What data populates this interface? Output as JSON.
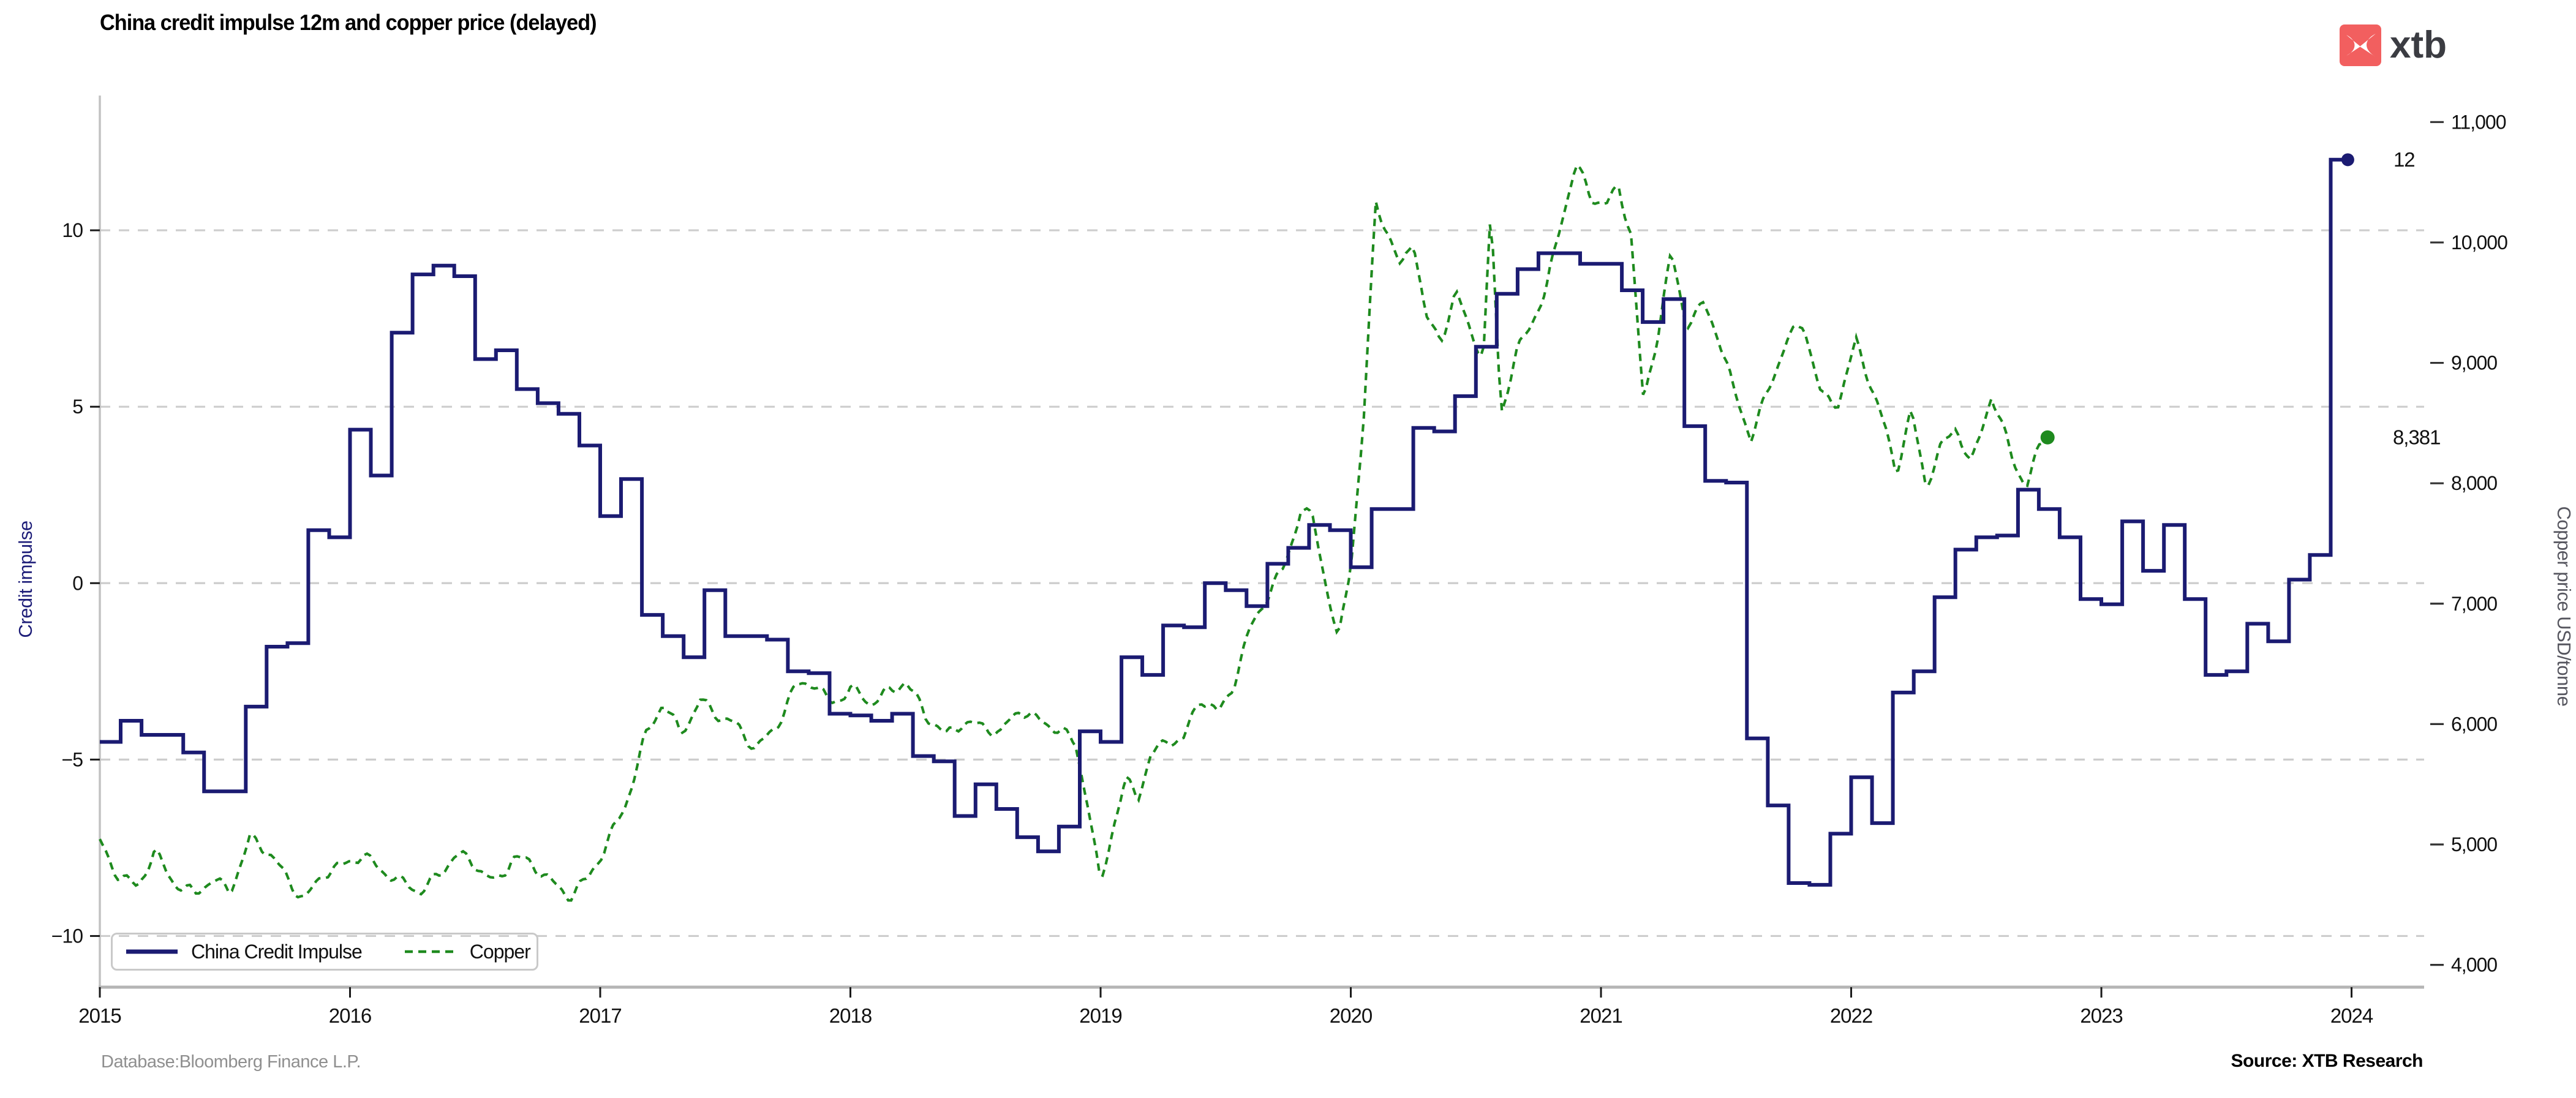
{
  "header": {
    "title": "China credit impulse 12m and copper price (delayed)",
    "logo": {
      "brand": "xtb",
      "accent_color": "#f25f5f",
      "text_color": "#3b3c42"
    }
  },
  "footer": {
    "database": "Database:Bloomberg Finance L.P.",
    "source": "Source: XTB Research"
  },
  "chart_data": {
    "type": "line",
    "title": "China credit impulse 12m and copper price (delayed)",
    "grid": {
      "axis": "y",
      "style": "dashed",
      "color": "#cdcdcd"
    },
    "x_axis": {
      "range": [
        2015,
        2024.29
      ],
      "ticks": [
        2015,
        2016,
        2017,
        2018,
        2019,
        2020,
        2021,
        2022,
        2023,
        2024
      ]
    },
    "y_left": {
      "label": "Credit impulse",
      "color": "#1d1d78",
      "range": [
        -11.45,
        13.75
      ],
      "ticks": [
        10,
        5,
        0,
        -5,
        -10
      ],
      "tick_labels": [
        "10",
        "5",
        "0",
        "−5",
        "−10"
      ]
    },
    "y_right": {
      "label": "Copper price USD/tonne",
      "color": "#55555e",
      "range": [
        3815,
        11200
      ],
      "ticks": [
        11000,
        10000,
        9000,
        8000,
        7000,
        6000,
        5000,
        4000
      ],
      "tick_labels": [
        "11,000",
        "10,000",
        "9,000",
        "8,000",
        "7,000",
        "6,000",
        "5,000",
        "4,000"
      ]
    },
    "legend": {
      "position": "lower left",
      "items": [
        {
          "label": "China Credit Impulse",
          "color": "#1b1b72",
          "dash": "solid"
        },
        {
          "label": "Copper",
          "color": "#1e8a1e",
          "dash": "dashed"
        }
      ]
    },
    "annotations": [
      {
        "id": "credit-final",
        "text": "12",
        "x": 2024.21,
        "axis": "left",
        "y": 12
      },
      {
        "id": "copper-final",
        "text": "8,381",
        "x": 2024.26,
        "axis": "right",
        "y": 8381
      }
    ],
    "series": [
      {
        "name": "China Credit Impulse",
        "axis": "left",
        "style": "step",
        "color": "#1b1b72",
        "start_year": 2015,
        "frequency": "monthly",
        "end_marker": true,
        "values": [
          -4.5,
          -3.9,
          -4.3,
          -4.3,
          -4.8,
          -5.9,
          -5.9,
          -3.5,
          -1.8,
          -1.7,
          1.5,
          1.3,
          4.35,
          3.05,
          7.1,
          8.75,
          9.0,
          8.7,
          6.35,
          6.6,
          5.5,
          5.1,
          4.8,
          3.9,
          1.9,
          2.95,
          -0.9,
          -1.5,
          -2.1,
          -0.2,
          -1.5,
          -1.5,
          -1.6,
          -2.5,
          -2.55,
          -3.7,
          -3.75,
          -3.9,
          -3.7,
          -4.9,
          -5.05,
          -6.6,
          -5.7,
          -6.4,
          -7.2,
          -7.6,
          -6.9,
          -4.2,
          -4.5,
          -2.1,
          -2.6,
          -1.2,
          -1.25,
          0.0,
          -0.2,
          -0.65,
          0.55,
          1.0,
          1.65,
          1.5,
          0.45,
          2.1,
          2.1,
          4.4,
          4.3,
          5.3,
          6.7,
          8.2,
          8.9,
          9.35,
          9.35,
          9.05,
          9.05,
          8.3,
          7.4,
          8.05,
          4.45,
          2.9,
          2.85,
          -4.4,
          -6.3,
          -8.5,
          -8.55,
          -7.1,
          -5.5,
          -6.8,
          -3.1,
          -2.5,
          -0.4,
          0.95,
          1.3,
          1.35,
          2.65,
          2.1,
          1.3,
          -0.45,
          -0.6,
          1.75,
          0.35,
          1.65,
          -0.45,
          -2.6,
          -2.5,
          -1.15,
          -1.65,
          0.1,
          0.8,
          12
        ]
      },
      {
        "name": "Copper",
        "axis": "right",
        "style": "dashed-noisy",
        "color": "#1e8a1e",
        "end_marker": true,
        "points": [
          [
            2015.0,
            5050
          ],
          [
            2015.08,
            4720
          ],
          [
            2015.15,
            4620
          ],
          [
            2015.22,
            4950
          ],
          [
            2015.3,
            4700
          ],
          [
            2015.38,
            4560
          ],
          [
            2015.45,
            4700
          ],
          [
            2015.52,
            4640
          ],
          [
            2015.6,
            5050
          ],
          [
            2015.68,
            4900
          ],
          [
            2015.75,
            4720
          ],
          [
            2015.82,
            4570
          ],
          [
            2015.9,
            4750
          ],
          [
            2015.97,
            4800
          ],
          [
            2016.05,
            4950
          ],
          [
            2016.12,
            4800
          ],
          [
            2016.2,
            4660
          ],
          [
            2016.28,
            4620
          ],
          [
            2016.35,
            4760
          ],
          [
            2016.42,
            4900
          ],
          [
            2016.5,
            4820
          ],
          [
            2016.58,
            4700
          ],
          [
            2016.65,
            4900
          ],
          [
            2016.72,
            4820
          ],
          [
            2016.8,
            4700
          ],
          [
            2016.88,
            4600
          ],
          [
            2016.95,
            4700
          ],
          [
            2017.02,
            4950
          ],
          [
            2017.1,
            5350
          ],
          [
            2017.18,
            5900
          ],
          [
            2017.25,
            6150
          ],
          [
            2017.32,
            5920
          ],
          [
            2017.4,
            6220
          ],
          [
            2017.48,
            6050
          ],
          [
            2017.55,
            5950
          ],
          [
            2017.62,
            5820
          ],
          [
            2017.7,
            5980
          ],
          [
            2017.78,
            6280
          ],
          [
            2017.85,
            6350
          ],
          [
            2017.92,
            6200
          ],
          [
            2018.0,
            6280
          ],
          [
            2018.08,
            6150
          ],
          [
            2018.15,
            6280
          ],
          [
            2018.22,
            6380
          ],
          [
            2018.3,
            6050
          ],
          [
            2018.38,
            5900
          ],
          [
            2018.45,
            6050
          ],
          [
            2018.52,
            5980
          ],
          [
            2018.6,
            5900
          ],
          [
            2018.68,
            6150
          ],
          [
            2018.75,
            6050
          ],
          [
            2018.82,
            5950
          ],
          [
            2018.9,
            5820
          ],
          [
            2018.95,
            5350
          ],
          [
            2019.0,
            4680
          ],
          [
            2019.05,
            5150
          ],
          [
            2019.1,
            5500
          ],
          [
            2019.15,
            5380
          ],
          [
            2019.2,
            5750
          ],
          [
            2019.27,
            5900
          ],
          [
            2019.33,
            5850
          ],
          [
            2019.4,
            6200
          ],
          [
            2019.47,
            6100
          ],
          [
            2019.53,
            6350
          ],
          [
            2019.6,
            6790
          ],
          [
            2019.67,
            7050
          ],
          [
            2019.73,
            7300
          ],
          [
            2019.8,
            7800
          ],
          [
            2019.85,
            7700
          ],
          [
            2019.9,
            7150
          ],
          [
            2019.95,
            6650
          ],
          [
            2020.0,
            7350
          ],
          [
            2020.05,
            8500
          ],
          [
            2020.1,
            10330
          ],
          [
            2020.15,
            10050
          ],
          [
            2020.2,
            9750
          ],
          [
            2020.25,
            10050
          ],
          [
            2020.3,
            9400
          ],
          [
            2020.36,
            9200
          ],
          [
            2020.42,
            9550
          ],
          [
            2020.48,
            9250
          ],
          [
            2020.53,
            9050
          ],
          [
            2020.56,
            10300
          ],
          [
            2020.6,
            8600
          ],
          [
            2020.66,
            9050
          ],
          [
            2020.72,
            9300
          ],
          [
            2020.78,
            9600
          ],
          [
            2020.84,
            10200
          ],
          [
            2020.9,
            10650
          ],
          [
            2020.96,
            10350
          ],
          [
            2021.02,
            10300
          ],
          [
            2021.07,
            10480
          ],
          [
            2021.12,
            10100
          ],
          [
            2021.17,
            8650
          ],
          [
            2021.23,
            9250
          ],
          [
            2021.28,
            9900
          ],
          [
            2021.34,
            9350
          ],
          [
            2021.41,
            9500
          ],
          [
            2021.47,
            9200
          ],
          [
            2021.53,
            8750
          ],
          [
            2021.6,
            8400
          ],
          [
            2021.67,
            8800
          ],
          [
            2021.74,
            9150
          ],
          [
            2021.81,
            9320
          ],
          [
            2021.88,
            8750
          ],
          [
            2021.95,
            8680
          ],
          [
            2022.02,
            9150
          ],
          [
            2022.08,
            8800
          ],
          [
            2022.14,
            8450
          ],
          [
            2022.18,
            8120
          ],
          [
            2022.24,
            8590
          ],
          [
            2022.3,
            7950
          ],
          [
            2022.36,
            8300
          ],
          [
            2022.42,
            8500
          ],
          [
            2022.48,
            8150
          ],
          [
            2022.56,
            8700
          ],
          [
            2022.64,
            8250
          ],
          [
            2022.7,
            7990
          ],
          [
            2022.75,
            8300
          ],
          [
            2022.785,
            8381
          ]
        ]
      }
    ]
  }
}
